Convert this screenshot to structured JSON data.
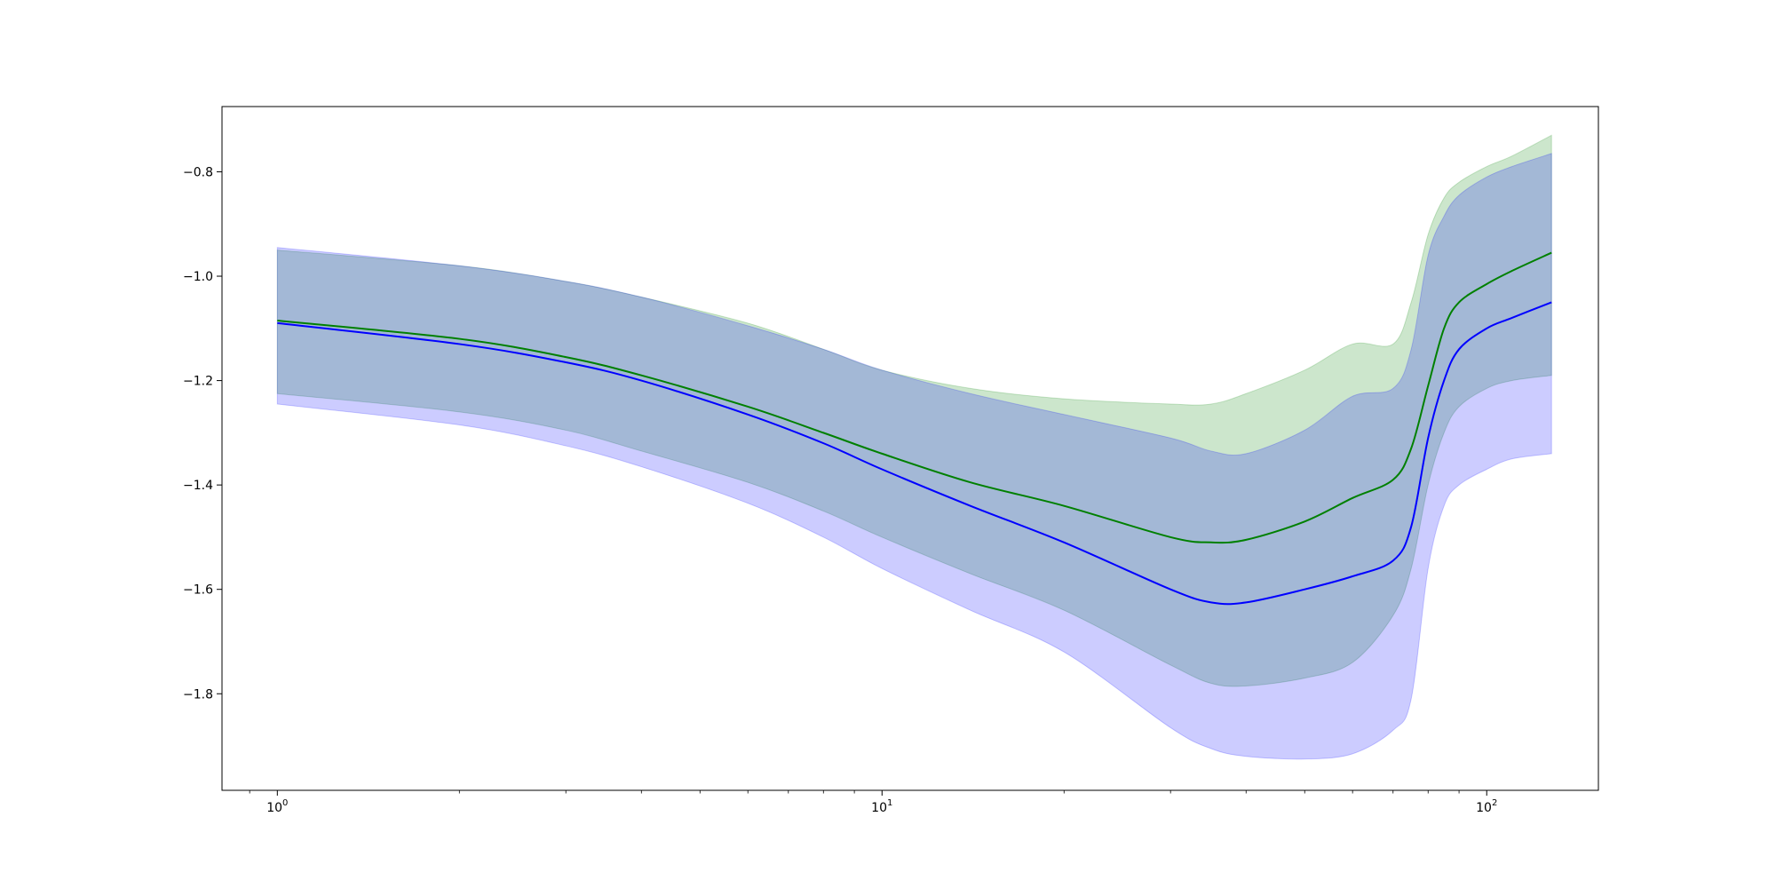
{
  "chart_data": {
    "type": "line",
    "xscale": "log",
    "xlim": [
      0.81,
      153
    ],
    "ylim": [
      -1.985,
      -0.675
    ],
    "grid": false,
    "legend": "none",
    "x_ticks": [
      {
        "value": 1,
        "base": "10",
        "exp": "0"
      },
      {
        "value": 10,
        "base": "10",
        "exp": "1"
      },
      {
        "value": 100,
        "base": "10",
        "exp": "2"
      }
    ],
    "y_ticks": [
      {
        "value": -0.8,
        "label": "−0.8"
      },
      {
        "value": -1.0,
        "label": "−1.0"
      },
      {
        "value": -1.2,
        "label": "−1.2"
      },
      {
        "value": -1.4,
        "label": "−1.4"
      },
      {
        "value": -1.6,
        "label": "−1.6"
      },
      {
        "value": -1.8,
        "label": "−1.8"
      }
    ],
    "x": [
      1,
      2,
      3,
      4,
      6,
      8,
      10,
      14,
      20,
      30,
      35,
      40,
      50,
      60,
      70,
      75,
      80,
      85,
      90,
      100,
      110,
      128
    ],
    "series": [
      {
        "color": "#008000",
        "band_color": "#008000",
        "band_alpha": 0.2,
        "values": [
          -1.085,
          -1.12,
          -1.155,
          -1.19,
          -1.25,
          -1.3,
          -1.34,
          -1.395,
          -1.44,
          -1.5,
          -1.51,
          -1.505,
          -1.47,
          -1.425,
          -1.39,
          -1.33,
          -1.21,
          -1.1,
          -1.05,
          -1.015,
          -0.99,
          -0.955
        ],
        "upper": [
          -0.95,
          -0.98,
          -1.01,
          -1.04,
          -1.09,
          -1.14,
          -1.18,
          -1.215,
          -1.235,
          -1.245,
          -1.245,
          -1.225,
          -1.18,
          -1.13,
          -1.13,
          -1.05,
          -0.92,
          -0.85,
          -0.82,
          -0.79,
          -0.77,
          -0.73
        ],
        "lower": [
          -1.225,
          -1.26,
          -1.295,
          -1.335,
          -1.395,
          -1.45,
          -1.5,
          -1.57,
          -1.64,
          -1.745,
          -1.78,
          -1.785,
          -1.77,
          -1.74,
          -1.65,
          -1.56,
          -1.4,
          -1.3,
          -1.25,
          -1.215,
          -1.2,
          -1.19
        ]
      },
      {
        "color": "#0000ff",
        "band_color": "#0000ff",
        "band_alpha": 0.2,
        "values": [
          -1.09,
          -1.13,
          -1.165,
          -1.2,
          -1.265,
          -1.32,
          -1.37,
          -1.44,
          -1.51,
          -1.6,
          -1.625,
          -1.625,
          -1.6,
          -1.575,
          -1.545,
          -1.48,
          -1.31,
          -1.2,
          -1.14,
          -1.1,
          -1.08,
          -1.05
        ],
        "upper": [
          -0.945,
          -0.98,
          -1.01,
          -1.04,
          -1.095,
          -1.14,
          -1.18,
          -1.225,
          -1.265,
          -1.31,
          -1.335,
          -1.34,
          -1.295,
          -1.23,
          -1.215,
          -1.14,
          -0.96,
          -0.885,
          -0.845,
          -0.81,
          -0.79,
          -0.765
        ],
        "lower": [
          -1.245,
          -1.285,
          -1.325,
          -1.365,
          -1.435,
          -1.5,
          -1.56,
          -1.64,
          -1.72,
          -1.865,
          -1.905,
          -1.92,
          -1.925,
          -1.915,
          -1.87,
          -1.81,
          -1.56,
          -1.44,
          -1.4,
          -1.37,
          -1.35,
          -1.34
        ]
      }
    ]
  }
}
